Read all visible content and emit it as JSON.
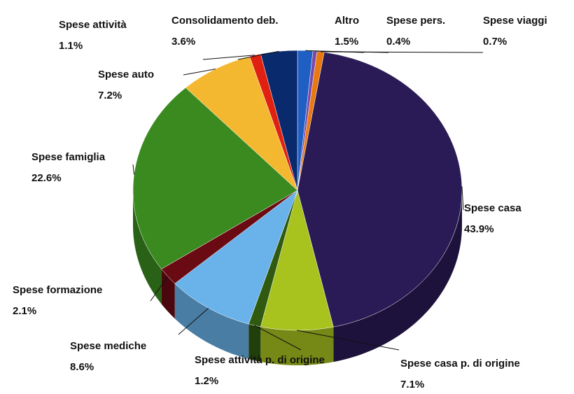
{
  "chart_data": {
    "type": "pie",
    "categories": [
      "Altro",
      "Spese pers.",
      "Spese viaggi",
      "Spese casa",
      "Spese casa p. di origine",
      "Spese attività p. di origine",
      "Spese mediche",
      "Spese formazione",
      "Spese famiglia",
      "Spese auto",
      "Spese attività",
      "Consolidamento deb."
    ],
    "values": [
      1.5,
      0.4,
      0.7,
      43.9,
      7.1,
      1.2,
      8.6,
      2.1,
      22.6,
      7.2,
      1.1,
      3.6
    ],
    "value_labels": [
      "1.5%",
      "0.4%",
      "0.7%",
      "43.9%",
      "7.1%",
      "1.2%",
      "8.6%",
      "2.1%",
      "22.6%",
      "7.2%",
      "1.1%",
      "3.6%"
    ],
    "colors": [
      "#1f5fc4",
      "#7a4aa8",
      "#e8780f",
      "#2a1a55",
      "#a8c21e",
      "#2f5a10",
      "#6ab2ea",
      "#6a0a12",
      "#3a8a20",
      "#f4b830",
      "#e02010",
      "#0a2a6e"
    ]
  }
}
